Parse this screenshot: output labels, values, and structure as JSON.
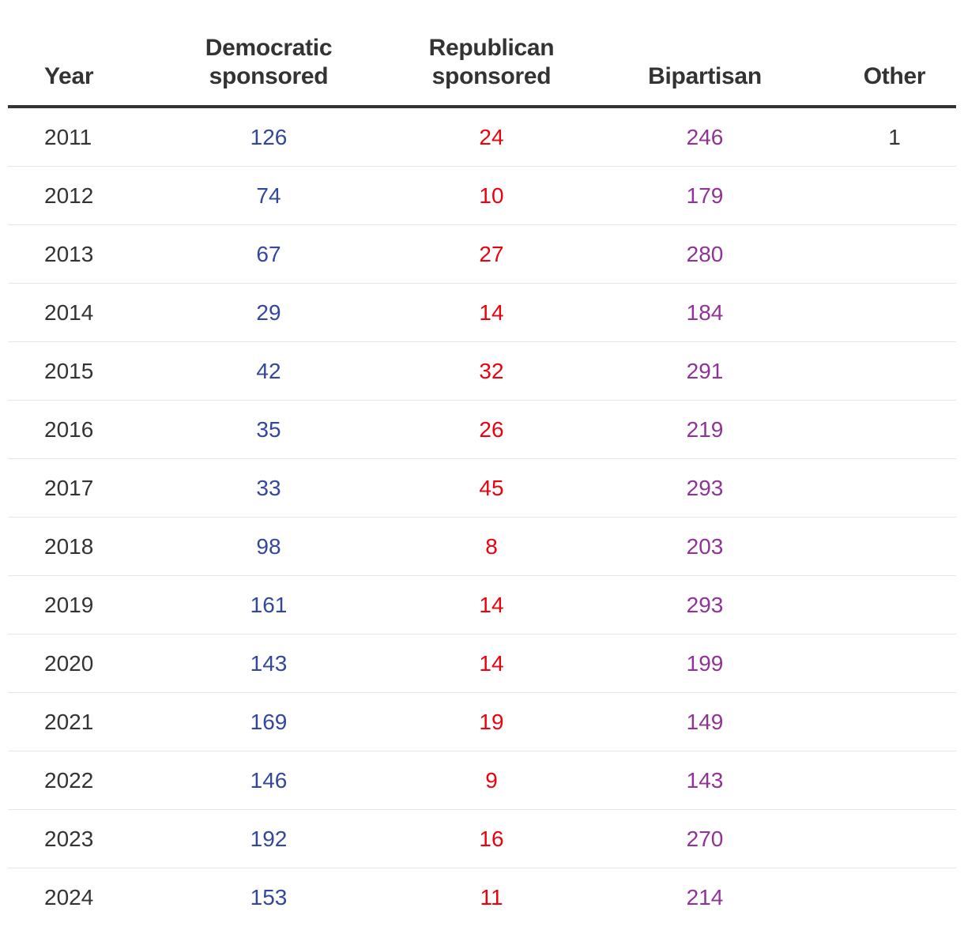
{
  "chart_data": {
    "type": "table",
    "columns": [
      "Year",
      "Democratic sponsored",
      "Republican sponsored",
      "Bipartisan",
      "Other"
    ],
    "header_lines": [
      [
        "Year"
      ],
      [
        "Democratic",
        "sponsored"
      ],
      [
        "Republican",
        "sponsored"
      ],
      [
        "Bipartisan"
      ],
      [
        "Other"
      ]
    ],
    "rows": [
      {
        "year": "2011",
        "dem": "126",
        "rep": "24",
        "bi": "246",
        "other": "1"
      },
      {
        "year": "2012",
        "dem": "74",
        "rep": "10",
        "bi": "179",
        "other": ""
      },
      {
        "year": "2013",
        "dem": "67",
        "rep": "27",
        "bi": "280",
        "other": ""
      },
      {
        "year": "2014",
        "dem": "29",
        "rep": "14",
        "bi": "184",
        "other": ""
      },
      {
        "year": "2015",
        "dem": "42",
        "rep": "32",
        "bi": "291",
        "other": ""
      },
      {
        "year": "2016",
        "dem": "35",
        "rep": "26",
        "bi": "219",
        "other": ""
      },
      {
        "year": "2017",
        "dem": "33",
        "rep": "45",
        "bi": "293",
        "other": ""
      },
      {
        "year": "2018",
        "dem": "98",
        "rep": "8",
        "bi": "203",
        "other": ""
      },
      {
        "year": "2019",
        "dem": "161",
        "rep": "14",
        "bi": "293",
        "other": ""
      },
      {
        "year": "2020",
        "dem": "143",
        "rep": "14",
        "bi": "199",
        "other": ""
      },
      {
        "year": "2021",
        "dem": "169",
        "rep": "19",
        "bi": "149",
        "other": ""
      },
      {
        "year": "2022",
        "dem": "146",
        "rep": "9",
        "bi": "143",
        "other": ""
      },
      {
        "year": "2023",
        "dem": "192",
        "rep": "16",
        "bi": "270",
        "other": ""
      },
      {
        "year": "2024",
        "dem": "153",
        "rep": "11",
        "bi": "214",
        "other": ""
      }
    ],
    "colors": {
      "text": "#333333",
      "democratic": "#33479b",
      "republican": "#e8040f",
      "bipartisan": "#8f3496",
      "rule": "#333333",
      "divider": "#e6e6e6"
    }
  }
}
